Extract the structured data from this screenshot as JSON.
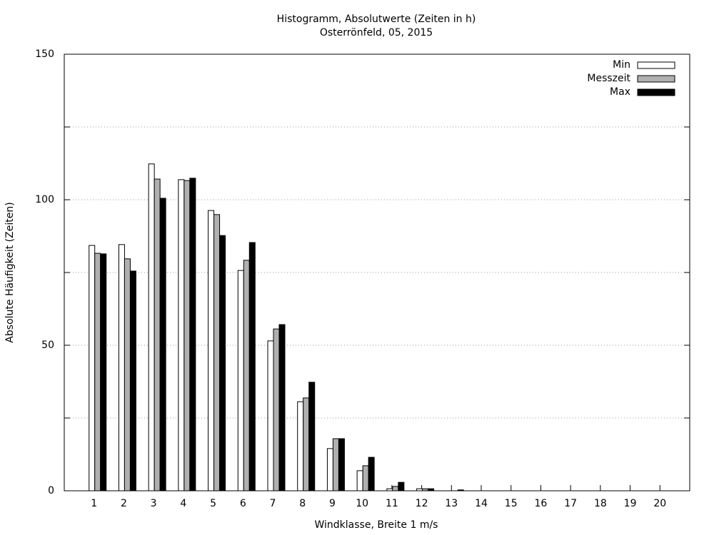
{
  "chart_data": {
    "type": "bar",
    "title": "Histogramm, Absolutwerte (Zeiten in h)",
    "subtitle": "Osterrönfeld, 05, 2015",
    "x_label": "Windklasse, Breite 1 m/s",
    "y_label": "Absolute Häufigkeit (Zeiten)",
    "categories": [
      "1",
      "2",
      "3",
      "4",
      "5",
      "6",
      "7",
      "8",
      "9",
      "10",
      "11",
      "12",
      "13",
      "14",
      "15",
      "16",
      "17",
      "18",
      "19",
      "20"
    ],
    "series": [
      {
        "name": "Min",
        "color": "#ffffff",
        "values": [
          84.3,
          84.6,
          112.3,
          106.9,
          96.3,
          75.7,
          51.5,
          30.6,
          14.5,
          6.9,
          0.7,
          0.7,
          0,
          0,
          0,
          0,
          0,
          0,
          0,
          0
        ]
      },
      {
        "name": "Messzeit",
        "color": "#b0b0b0",
        "values": [
          81.6,
          79.7,
          107.1,
          106.6,
          94.9,
          79.2,
          55.6,
          31.9,
          17.9,
          8.6,
          1.5,
          0.7,
          0,
          0,
          0,
          0,
          0,
          0,
          0,
          0
        ]
      },
      {
        "name": "Max",
        "color": "#000000",
        "values": [
          81.4,
          75.5,
          100.5,
          107.4,
          87.7,
          85.3,
          57.1,
          37.3,
          17.9,
          11.5,
          2.9,
          0.7,
          0.3,
          0,
          0,
          0,
          0,
          0,
          0,
          0
        ]
      }
    ],
    "ylim": [
      0,
      150
    ],
    "yticks": [
      0,
      50,
      100,
      150
    ],
    "minor_yticks": [
      25,
      75,
      125
    ],
    "grid": true,
    "legend": "top-right"
  }
}
